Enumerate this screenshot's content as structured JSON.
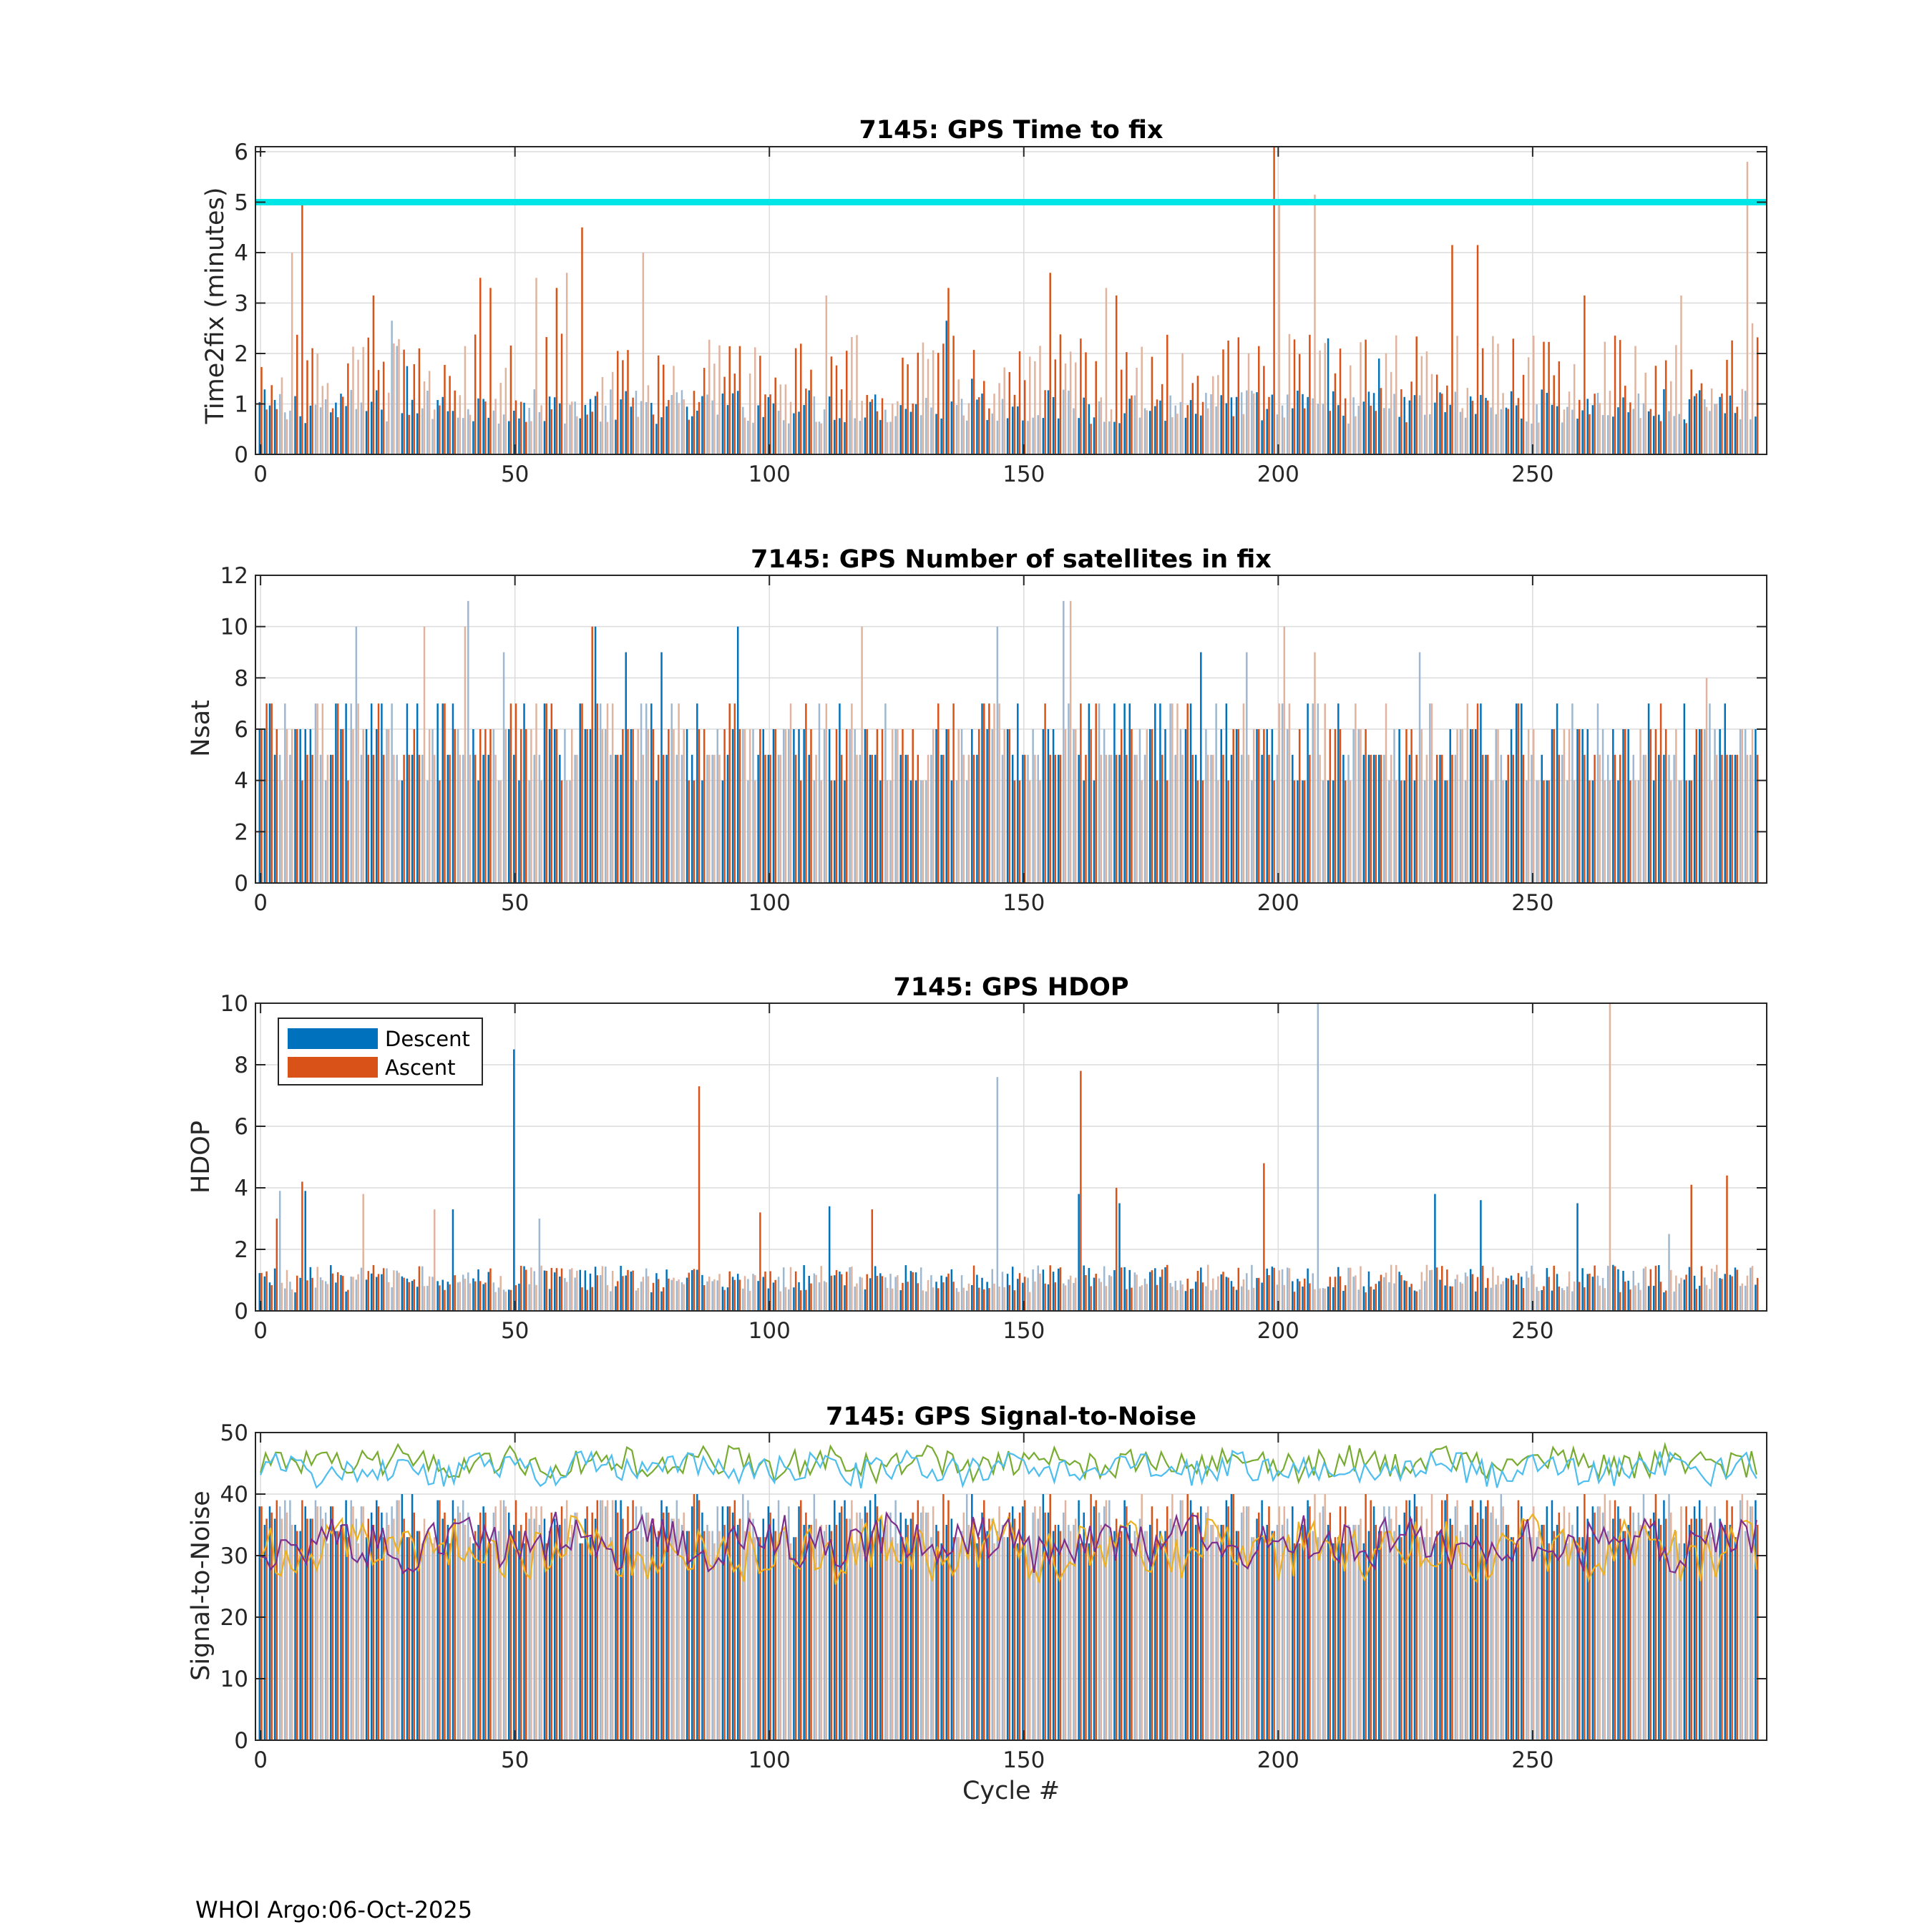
{
  "chart_data": [
    {
      "type": "bar",
      "title": "7145: GPS Time to fix",
      "xlabel": "",
      "ylabel": "Time2fix (minutes)",
      "xlim": [
        -1,
        296
      ],
      "ylim": [
        0,
        6.1
      ],
      "xticks": [
        0,
        50,
        100,
        150,
        200,
        250
      ],
      "yticks": [
        0,
        1,
        2,
        3,
        4,
        5,
        6
      ],
      "grid": true,
      "reference_line": {
        "y": 5,
        "color": "#00e5e5"
      },
      "series": [
        {
          "name": "Descent",
          "color": "#0072bd",
          "base": 0.95,
          "amp": 0.35,
          "spikes": [
            [
              26,
              2.65
            ],
            [
              27,
              2.15
            ],
            [
              29,
              1.75
            ],
            [
              135,
              2.65
            ],
            [
              140,
              1.5
            ],
            [
              210,
              2.3
            ],
            [
              220,
              1.9
            ]
          ]
        },
        {
          "name": "Ascent",
          "color": "#d95319",
          "base": 1.5,
          "amp": 0.9,
          "spikes": [
            [
              6,
              4.0
            ],
            [
              8,
              5.0
            ],
            [
              22,
              3.15
            ],
            [
              43,
              3.5
            ],
            [
              45,
              3.3
            ],
            [
              54,
              3.5
            ],
            [
              58,
              3.3
            ],
            [
              60,
              3.6
            ],
            [
              63,
              4.5
            ],
            [
              75,
              4.0
            ],
            [
              111,
              3.15
            ],
            [
              135,
              3.3
            ],
            [
              155,
              3.6
            ],
            [
              166,
              3.3
            ],
            [
              168,
              3.15
            ],
            [
              199,
              6.1
            ],
            [
              200,
              5.0
            ],
            [
              207,
              5.15
            ],
            [
              234,
              4.15
            ],
            [
              239,
              4.15
            ],
            [
              260,
              3.15
            ],
            [
              279,
              3.15
            ],
            [
              292,
              5.8
            ],
            [
              293,
              2.6
            ]
          ]
        }
      ]
    },
    {
      "type": "bar",
      "title": "7145: GPS Number of satellites in fix",
      "xlabel": "",
      "ylabel": "Nsat",
      "xlim": [
        -1,
        296
      ],
      "ylim": [
        0,
        12
      ],
      "xticks": [
        0,
        50,
        100,
        150,
        200,
        250
      ],
      "yticks": [
        0,
        2,
        4,
        6,
        8,
        10,
        12
      ],
      "grid": true,
      "series": [
        {
          "name": "Descent",
          "color": "#0072bd",
          "base": 5.5,
          "amp": 1.6,
          "spikes": [
            [
              19,
              10
            ],
            [
              41,
              11
            ],
            [
              48,
              9
            ],
            [
              66,
              10
            ],
            [
              72,
              9
            ],
            [
              79,
              9
            ],
            [
              94,
              10
            ],
            [
              145,
              10
            ],
            [
              158,
              11
            ],
            [
              185,
              9
            ],
            [
              194,
              9
            ],
            [
              228,
              9
            ]
          ]
        },
        {
          "name": "Ascent",
          "color": "#d95319",
          "base": 5.5,
          "amp": 1.6,
          "spikes": [
            [
              32,
              10
            ],
            [
              40,
              10
            ],
            [
              65,
              10
            ],
            [
              118,
              10
            ],
            [
              159,
              11
            ],
            [
              201,
              10
            ],
            [
              207,
              9
            ],
            [
              284,
              8
            ]
          ]
        }
      ]
    },
    {
      "type": "bar",
      "title": "7145: GPS HDOP",
      "xlabel": "",
      "ylabel": "HDOP",
      "xlim": [
        -1,
        296
      ],
      "ylim": [
        0,
        10
      ],
      "xticks": [
        0,
        50,
        100,
        150,
        200,
        250
      ],
      "yticks": [
        0,
        2,
        4,
        6,
        8,
        10
      ],
      "grid": true,
      "legend": {
        "position": "top-left",
        "entries": [
          "Descent",
          "Ascent"
        ]
      },
      "series": [
        {
          "name": "Descent",
          "color": "#0072bd",
          "base": 1.05,
          "amp": 0.45,
          "spikes": [
            [
              4,
              3.9
            ],
            [
              9,
              3.9
            ],
            [
              38,
              3.3
            ],
            [
              50,
              8.5
            ],
            [
              55,
              3.0
            ],
            [
              112,
              3.4
            ],
            [
              145,
              7.6
            ],
            [
              161,
              3.8
            ],
            [
              169,
              3.5
            ],
            [
              208,
              10.0
            ],
            [
              231,
              3.8
            ],
            [
              240,
              3.6
            ],
            [
              259,
              3.5
            ],
            [
              277,
              2.5
            ]
          ]
        },
        {
          "name": "Ascent",
          "color": "#d95319",
          "base": 1.05,
          "amp": 0.45,
          "spikes": [
            [
              3,
              3.0
            ],
            [
              8,
              4.2
            ],
            [
              20,
              3.8
            ],
            [
              34,
              3.3
            ],
            [
              86,
              7.3
            ],
            [
              98,
              3.2
            ],
            [
              120,
              3.3
            ],
            [
              161,
              7.8
            ],
            [
              168,
              4.0
            ],
            [
              197,
              4.8
            ],
            [
              265,
              10.0
            ],
            [
              281,
              4.1
            ],
            [
              288,
              4.4
            ]
          ]
        }
      ]
    },
    {
      "type": "bar",
      "title": "7145: GPS Signal-to-Noise",
      "xlabel": "Cycle #",
      "ylabel": "Signal-to-Noise",
      "xlim": [
        -1,
        296
      ],
      "ylim": [
        0,
        50
      ],
      "xticks": [
        0,
        50,
        100,
        150,
        200,
        250
      ],
      "yticks": [
        0,
        10,
        20,
        30,
        40,
        50
      ],
      "grid": true,
      "bars": [
        {
          "name": "Descent",
          "color": "#0072bd",
          "base": 36,
          "amp": 4
        },
        {
          "name": "Ascent",
          "color": "#d95319",
          "base": 36,
          "amp": 4
        }
      ],
      "lines": [
        {
          "name": "SNR max (green)",
          "color": "#77ac30",
          "base": 45,
          "amp": 2.4
        },
        {
          "name": "SNR max (cyan)",
          "color": "#4dbeee",
          "base": 44,
          "amp": 2.4
        },
        {
          "name": "SNR mean (orange)",
          "color": "#edb120",
          "base": 31,
          "amp": 4.5
        },
        {
          "name": "SNR mean (purple)",
          "color": "#7e2f8e",
          "base": 32,
          "amp": 4.0
        }
      ]
    }
  ],
  "legend": {
    "descent_label": "Descent",
    "ascent_label": "Ascent"
  },
  "footer": {
    "text": "WHOI Argo:06-Oct-2025"
  },
  "colors": {
    "descent": "#0072bd",
    "ascent": "#d95319",
    "reference": "#00e5e5",
    "grid": "#dcdcdc"
  }
}
